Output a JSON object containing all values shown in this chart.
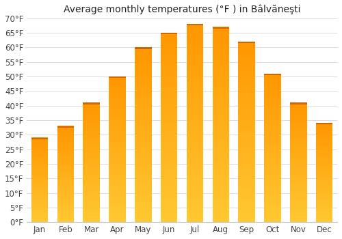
{
  "title": "Average monthly temperatures (°F ) in Bâlvăneşti",
  "months": [
    "Jan",
    "Feb",
    "Mar",
    "Apr",
    "May",
    "Jun",
    "Jul",
    "Aug",
    "Sep",
    "Oct",
    "Nov",
    "Dec"
  ],
  "values": [
    29,
    33,
    41,
    50,
    60,
    65,
    68,
    67,
    62,
    51,
    41,
    34
  ],
  "ylim": [
    0,
    70
  ],
  "yticks": [
    0,
    5,
    10,
    15,
    20,
    25,
    30,
    35,
    40,
    45,
    50,
    55,
    60,
    65,
    70
  ],
  "ytick_labels": [
    "0°F",
    "5°F",
    "10°F",
    "15°F",
    "20°F",
    "25°F",
    "30°F",
    "35°F",
    "40°F",
    "45°F",
    "50°F",
    "55°F",
    "60°F",
    "65°F",
    "70°F"
  ],
  "bar_color": "#FFA726",
  "bar_edge_color": "#E65100",
  "background_color": "#ffffff",
  "plot_bg_color": "#ffffff",
  "grid_color": "#dddddd",
  "title_fontsize": 10,
  "tick_fontsize": 8.5,
  "bar_width": 0.65
}
